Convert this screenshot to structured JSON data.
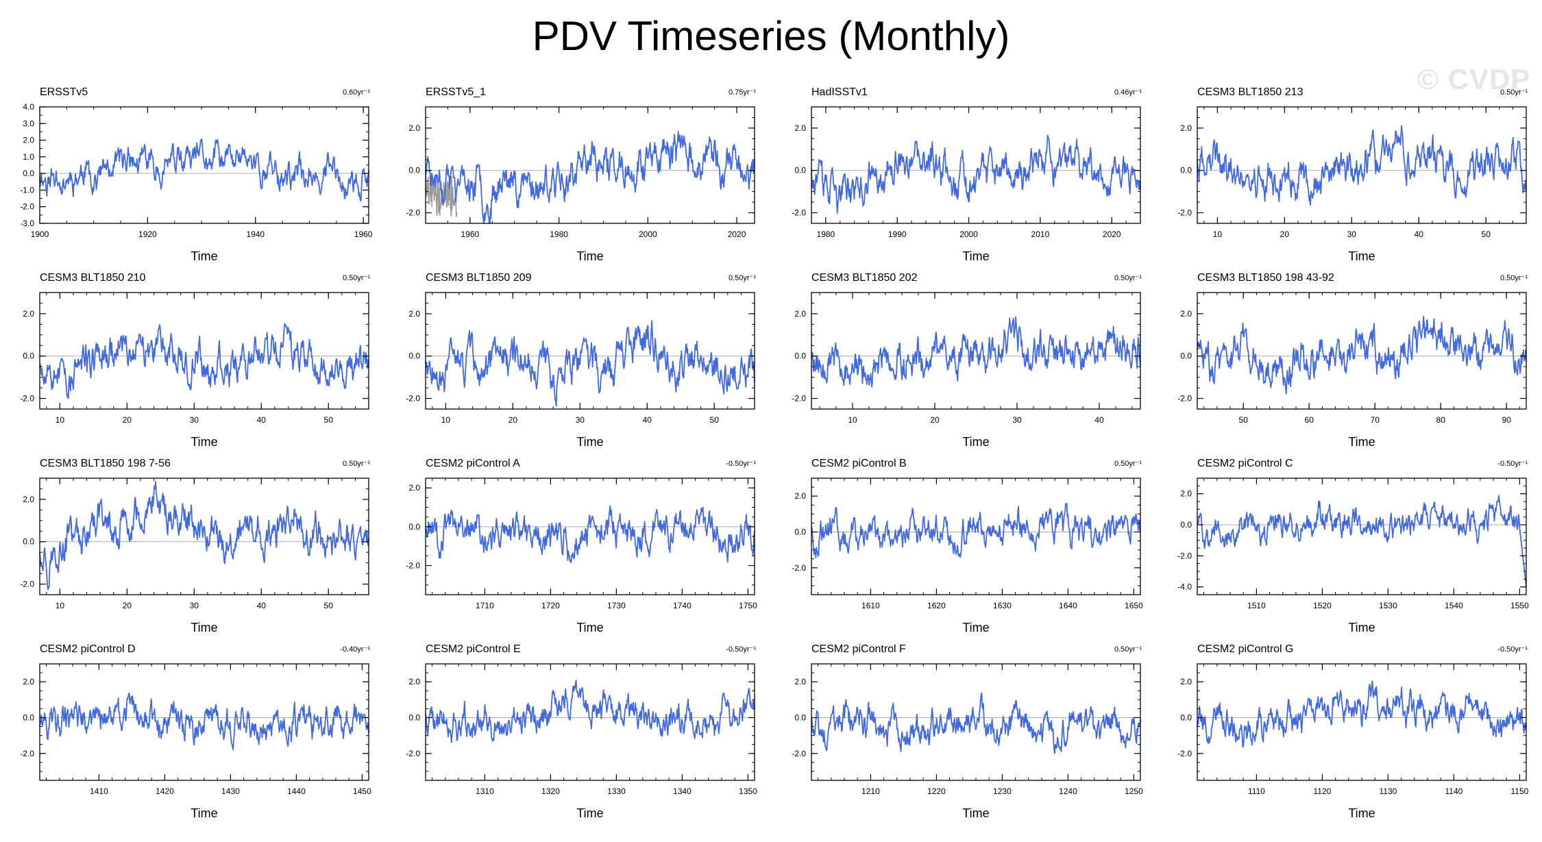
{
  "page_title": "PDV Timeseries (Monthly)",
  "watermark": "© CVDP",
  "colors": {
    "series": "#4169e1",
    "obs_extra": "#999999",
    "zero_line": "#aaaaaa",
    "axis": "#000000"
  },
  "chart_data": [
    {
      "type": "line",
      "title": "ERSSTv5",
      "trend": "0.60yr⁻¹",
      "xlabel": "Time",
      "xlim": [
        1900,
        1961
      ],
      "xticks": [
        1900,
        1920,
        1940,
        1960
      ],
      "ylim": [
        -3.0,
        4.0
      ],
      "yticks": [
        4.0,
        3.0,
        2.0,
        1.0,
        0.0,
        -1.0,
        -2.0,
        -3.0
      ],
      "ytick_labels": [
        "4.0",
        "3.0",
        "2.0",
        "1.0",
        "0.0",
        "-1.0",
        "-2.0",
        "-3.0"
      ],
      "seed": 11,
      "amp": 1.0
    },
    {
      "type": "line",
      "title": "ERSSTv5_1",
      "trend": "0.75yr⁻¹",
      "xlabel": "Time",
      "xlim": [
        1950,
        2024
      ],
      "xticks": [
        1960,
        1980,
        2000,
        2020
      ],
      "ylim": [
        -2.5,
        3.0
      ],
      "yticks": [
        2.0,
        0.0,
        -2.0
      ],
      "ytick_labels": [
        "2.0",
        "0.0",
        "-2.0"
      ],
      "seed": 23,
      "amp": 1.0,
      "extra_series": {
        "name": "gray overlay",
        "xlim": [
          1950,
          1957
        ]
      }
    },
    {
      "type": "line",
      "title": "HadISSTv1",
      "trend": "0.46yr⁻¹",
      "xlabel": "Time",
      "xlim": [
        1978,
        2024
      ],
      "xticks": [
        1980,
        1990,
        2000,
        2010,
        2020
      ],
      "ylim": [
        -2.5,
        3.0
      ],
      "yticks": [
        2.0,
        0.0,
        -2.0
      ],
      "ytick_labels": [
        "2.0",
        "0.0",
        "-2.0"
      ],
      "seed": 37,
      "amp": 1.0
    },
    {
      "type": "line",
      "title": "CESM3 BLT1850 213",
      "trend": "0.50yr⁻¹",
      "xlabel": "Time",
      "xlim": [
        7,
        56
      ],
      "xticks": [
        10,
        20,
        30,
        40,
        50
      ],
      "ylim": [
        -2.5,
        3.0
      ],
      "yticks": [
        2.0,
        0.0,
        -2.0
      ],
      "ytick_labels": [
        "2.0",
        "0.0",
        "-2.0"
      ],
      "seed": 41,
      "amp": 1.0
    },
    {
      "type": "line",
      "title": "CESM3 BLT1850 210",
      "trend": "0.50yr⁻¹",
      "xlabel": "Time",
      "xlim": [
        7,
        56
      ],
      "xticks": [
        10,
        20,
        30,
        40,
        50
      ],
      "ylim": [
        -2.5,
        3.0
      ],
      "yticks": [
        2.0,
        0.0,
        -2.0
      ],
      "ytick_labels": [
        "2.0",
        "0.0",
        "-2.0"
      ],
      "seed": 53,
      "amp": 1.0
    },
    {
      "type": "line",
      "title": "CESM3 BLT1850 209",
      "trend": "0.50yr⁻¹",
      "xlabel": "Time",
      "xlim": [
        7,
        56
      ],
      "xticks": [
        10,
        20,
        30,
        40,
        50
      ],
      "ylim": [
        -2.5,
        3.0
      ],
      "yticks": [
        2.0,
        0.0,
        -2.0
      ],
      "ytick_labels": [
        "2.0",
        "0.0",
        "-2.0"
      ],
      "seed": 67,
      "amp": 1.0
    },
    {
      "type": "line",
      "title": "CESM3 BLT1850 202",
      "trend": "0.50yr⁻¹",
      "xlabel": "Time",
      "xlim": [
        5,
        45
      ],
      "xticks": [
        10,
        20,
        30,
        40
      ],
      "ylim": [
        -2.5,
        3.0
      ],
      "yticks": [
        2.0,
        0.0,
        -2.0
      ],
      "ytick_labels": [
        "2.0",
        "0.0",
        "-2.0"
      ],
      "seed": 79,
      "amp": 1.0
    },
    {
      "type": "line",
      "title": "CESM3 BLT1850 198 43-92",
      "trend": "0.50yr⁻¹",
      "xlabel": "Time",
      "xlim": [
        43,
        93
      ],
      "xticks": [
        50,
        60,
        70,
        80,
        90
      ],
      "ylim": [
        -2.5,
        3.0
      ],
      "yticks": [
        2.0,
        0.0,
        -2.0
      ],
      "ytick_labels": [
        "2.0",
        "0.0",
        "-2.0"
      ],
      "seed": 83,
      "amp": 1.0
    },
    {
      "type": "line",
      "title": "CESM3 BLT1850 198 7-56",
      "trend": "0.50yr⁻¹",
      "xlabel": "Time",
      "xlim": [
        7,
        56
      ],
      "xticks": [
        10,
        20,
        30,
        40,
        50
      ],
      "ylim": [
        -2.5,
        3.0
      ],
      "yticks": [
        2.0,
        0.0,
        -2.0
      ],
      "ytick_labels": [
        "2.0",
        "0.0",
        "-2.0"
      ],
      "seed": 97,
      "amp": 1.0
    },
    {
      "type": "line",
      "title": "CESM2 piControl A",
      "trend": "-0.50yr⁻¹",
      "xlabel": "Time",
      "xlim": [
        1701,
        1751
      ],
      "xticks": [
        1710,
        1720,
        1730,
        1740,
        1750
      ],
      "ylim": [
        -3.5,
        2.5
      ],
      "yticks": [
        2.0,
        0.0,
        -2.0
      ],
      "ytick_labels": [
        "2.0",
        "0.0",
        "-2.0"
      ],
      "seed": 101,
      "amp": 1.0
    },
    {
      "type": "line",
      "title": "CESM2 piControl B",
      "trend": "0.50yr⁻¹",
      "xlabel": "Time",
      "xlim": [
        1601,
        1651
      ],
      "xticks": [
        1610,
        1620,
        1630,
        1640,
        1650
      ],
      "ylim": [
        -3.5,
        3.0
      ],
      "yticks": [
        2.0,
        0.0,
        -2.0
      ],
      "ytick_labels": [
        "2.0",
        "0.0",
        "-2.0"
      ],
      "seed": 113,
      "amp": 1.0
    },
    {
      "type": "line",
      "title": "CESM2 piControl C",
      "trend": "-0.50yr⁻¹",
      "xlabel": "Time",
      "xlim": [
        1501,
        1551
      ],
      "xticks": [
        1510,
        1520,
        1530,
        1540,
        1550
      ],
      "ylim": [
        -4.5,
        3.0
      ],
      "yticks": [
        2.0,
        0.0,
        -2.0,
        -4.0
      ],
      "ytick_labels": [
        "2.0",
        "0.0",
        "-2.0",
        "-4.0"
      ],
      "seed": 127,
      "amp": 1.0,
      "end_drop": -4.0
    },
    {
      "type": "line",
      "title": "CESM2 piControl D",
      "trend": "-0.40yr⁻¹",
      "xlabel": "Time",
      "xlim": [
        1401,
        1451
      ],
      "xticks": [
        1410,
        1420,
        1430,
        1440,
        1450
      ],
      "ylim": [
        -3.5,
        3.0
      ],
      "yticks": [
        2.0,
        0.0,
        -2.0
      ],
      "ytick_labels": [
        "2.0",
        "0.0",
        "-2.0"
      ],
      "seed": 131,
      "amp": 1.0
    },
    {
      "type": "line",
      "title": "CESM2 piControl E",
      "trend": "-0.50yr⁻¹",
      "xlabel": "Time",
      "xlim": [
        1301,
        1351
      ],
      "xticks": [
        1310,
        1320,
        1330,
        1340,
        1350
      ],
      "ylim": [
        -3.5,
        3.0
      ],
      "yticks": [
        2.0,
        0.0,
        -2.0
      ],
      "ytick_labels": [
        "2.0",
        "0.0",
        "-2.0"
      ],
      "seed": 149,
      "amp": 1.0
    },
    {
      "type": "line",
      "title": "CESM2 piControl F",
      "trend": "0.50yr⁻¹",
      "xlabel": "Time",
      "xlim": [
        1201,
        1251
      ],
      "xticks": [
        1210,
        1220,
        1230,
        1240,
        1250
      ],
      "ylim": [
        -3.5,
        3.0
      ],
      "yticks": [
        2.0,
        0.0,
        -2.0
      ],
      "ytick_labels": [
        "2.0",
        "0.0",
        "-2.0"
      ],
      "seed": 157,
      "amp": 1.0
    },
    {
      "type": "line",
      "title": "CESM2 piControl G",
      "trend": "-0.50yr⁻¹",
      "xlabel": "Time",
      "xlim": [
        1101,
        1151
      ],
      "xticks": [
        1110,
        1120,
        1130,
        1140,
        1150
      ],
      "ylim": [
        -3.5,
        3.0
      ],
      "yticks": [
        2.0,
        0.0,
        -2.0
      ],
      "ytick_labels": [
        "2.0",
        "0.0",
        "-2.0"
      ],
      "seed": 163,
      "amp": 1.0
    }
  ]
}
